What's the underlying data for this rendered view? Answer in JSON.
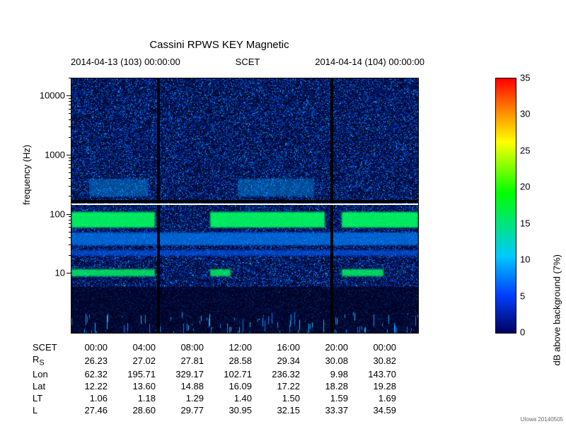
{
  "title": "Cassini RPWS KEY Magnetic",
  "subtitle_left": "2014-04-13 (103) 00:00:00",
  "subtitle_mid": "SCET",
  "subtitle_right": "2014-04-14 (104) 00:00:00",
  "y_axis_label": "frequency (Hz)",
  "y_axis": {
    "scale": "log",
    "min": 1,
    "max": 20000,
    "major_ticks": [
      10,
      100,
      1000,
      10000
    ],
    "tick_labels": [
      "10",
      "100",
      "1000",
      "10000"
    ]
  },
  "x_table": {
    "headers": [
      "SCET",
      "R_S",
      "Lon",
      "Lat",
      "LT",
      "L"
    ],
    "columns": [
      "00:00",
      "04:00",
      "08:00",
      "12:00",
      "16:00",
      "20:00",
      "00:00"
    ],
    "rows": [
      [
        "26.23",
        "27.02",
        "27.81",
        "28.58",
        "29.34",
        "30.08",
        "30.82"
      ],
      [
        "62.32",
        "195.71",
        "329.17",
        "102.71",
        "236.32",
        "9.98",
        "143.70"
      ],
      [
        "12.22",
        "13.60",
        "14.88",
        "16.09",
        "17.22",
        "18.28",
        "19.28"
      ],
      [
        "1.06",
        "1.18",
        "1.29",
        "1.40",
        "1.50",
        "1.59",
        "1.69"
      ],
      [
        "27.46",
        "28.60",
        "29.77",
        "30.95",
        "32.15",
        "33.37",
        "34.59"
      ]
    ]
  },
  "colorbar": {
    "label": "dB above background (7%)",
    "min": 0,
    "max": 35,
    "ticks": [
      0,
      5,
      10,
      15,
      20,
      25,
      30,
      35
    ],
    "gradient_stops": [
      {
        "pct": 0,
        "color": "#ff0000"
      },
      {
        "pct": 12,
        "color": "#ff7f00"
      },
      {
        "pct": 25,
        "color": "#ffff00"
      },
      {
        "pct": 45,
        "color": "#00ff00"
      },
      {
        "pct": 70,
        "color": "#00c8ff"
      },
      {
        "pct": 85,
        "color": "#0040ff"
      },
      {
        "pct": 100,
        "color": "#000060"
      }
    ]
  },
  "spectrogram": {
    "type": "heatmap",
    "background_color": "#000830",
    "noise_colors": [
      "#000830",
      "#001050",
      "#001a70",
      "#002090",
      "#0030b8",
      "#0048d8",
      "#0060ff",
      "#0080ff",
      "#00a0ff",
      "#00c8ff"
    ],
    "white_line_freq": 150,
    "bands": [
      {
        "freq_lo": 60,
        "freq_hi": 110,
        "color": "#00ff60",
        "alpha": 0.9,
        "segments": [
          [
            0.0,
            0.24
          ],
          [
            0.4,
            0.73
          ],
          [
            0.78,
            1.0
          ]
        ]
      },
      {
        "freq_lo": 9,
        "freq_hi": 12,
        "color": "#00ff60",
        "alpha": 0.8,
        "segments": [
          [
            0.0,
            0.24
          ],
          [
            0.4,
            0.46
          ],
          [
            0.78,
            0.9
          ]
        ]
      },
      {
        "freq_lo": 30,
        "freq_hi": 50,
        "color": "#0080ff",
        "alpha": 0.7,
        "segments": [
          [
            0.0,
            1.0
          ]
        ]
      },
      {
        "freq_lo": 20,
        "freq_hi": 25,
        "color": "#0060ff",
        "alpha": 0.6,
        "segments": [
          [
            0.0,
            1.0
          ]
        ]
      },
      {
        "freq_lo": 200,
        "freq_hi": 400,
        "color": "#00a0ff",
        "alpha": 0.4,
        "segments": [
          [
            0.05,
            0.22
          ],
          [
            0.48,
            0.7
          ]
        ]
      }
    ],
    "vertical_gaps": [
      0.25,
      0.75
    ]
  },
  "footer": "UIowa 20140505"
}
